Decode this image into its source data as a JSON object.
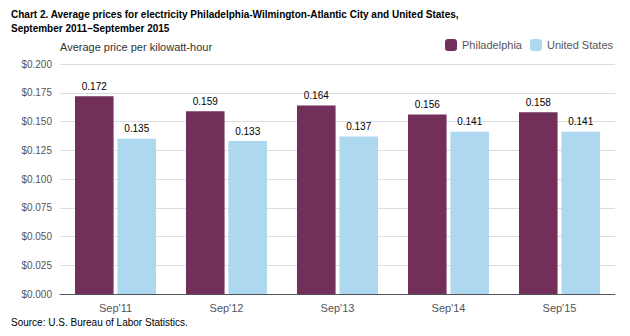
{
  "chart_data": {
    "type": "bar",
    "title": "Chart 2. Average prices for electricity Philadelphia-Wilmington-Atlantic City and United States,",
    "subtitle": "September 2011–September 2015",
    "y_label": "Average price per kilowatt-hour",
    "annotations": [
      "Source: U.S. Bureau of Labor Statistics."
    ],
    "categories": [
      "Sep'11",
      "Sep'12",
      "Sep'13",
      "Sep'14",
      "Sep'15"
    ],
    "series": [
      {
        "name": "Philadelphia",
        "color": "#722F5A",
        "values": [
          0.172,
          0.159,
          0.164,
          0.156,
          0.158
        ]
      },
      {
        "name": "United States",
        "color": "#ADD8F0",
        "values": [
          0.135,
          0.133,
          0.137,
          0.141,
          0.141
        ]
      }
    ],
    "ylim": [
      0,
      0.2
    ],
    "yticks": [
      {
        "value": 0,
        "label": "$0.000"
      },
      {
        "value": 0.025,
        "label": "$0.025"
      },
      {
        "value": 0.05,
        "label": "$0.050"
      },
      {
        "value": 0.075,
        "label": "$0.075"
      },
      {
        "value": 0.1,
        "label": "$0.100"
      },
      {
        "value": 0.125,
        "label": "$0.125"
      },
      {
        "value": 0.15,
        "label": "$0.150"
      },
      {
        "value": 0.175,
        "label": "$0.175"
      },
      {
        "value": 0.2,
        "label": "$0.200"
      }
    ],
    "grid": true,
    "legend": "upper right",
    "data_labels": true
  }
}
